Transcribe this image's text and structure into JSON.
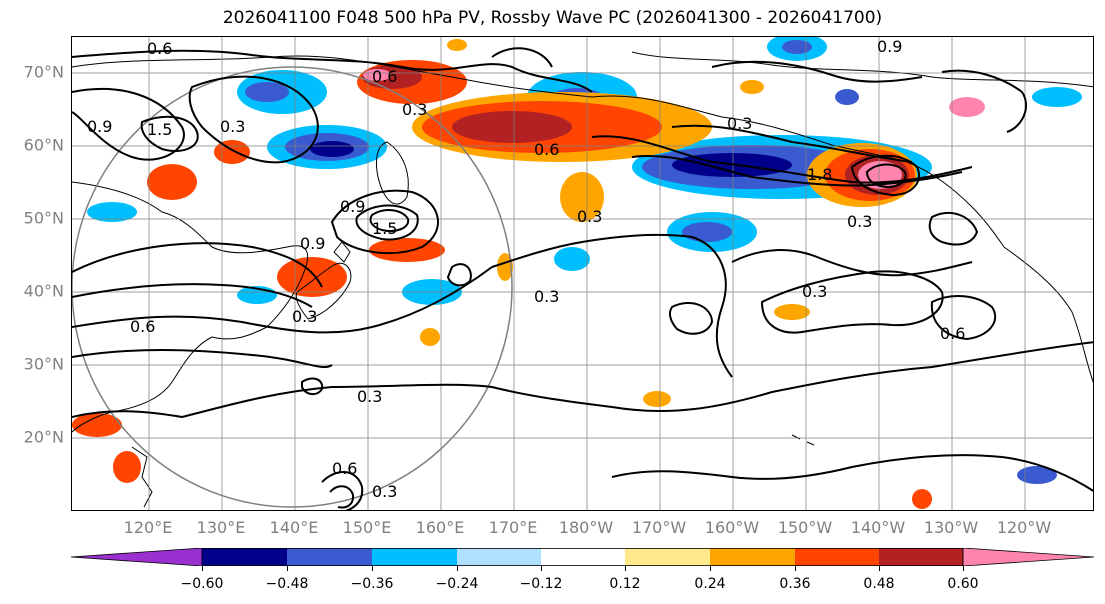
{
  "title": "2026041100 F048 500 hPa PV, Rossby Wave PC (2026041300 - 2026041700)",
  "lat_labels": [
    "70°N",
    "60°N",
    "50°N",
    "40°N",
    "30°N",
    "20°N"
  ],
  "lon_labels": [
    "120°E",
    "130°E",
    "140°E",
    "150°E",
    "160°E",
    "170°E",
    "180°W",
    "170°W",
    "160°W",
    "150°W",
    "140°W",
    "130°W",
    "120°W"
  ],
  "contour_labels": [
    "0.6",
    "0.9",
    "1.5",
    "0.3",
    "0.3",
    "0.6",
    "0.9",
    "0.3",
    "1.8",
    "0.3",
    "0.6",
    "0.9",
    "1.5",
    "0.9",
    "0.3",
    "0.6",
    "0.3",
    "0.3",
    "0.3",
    "0.6",
    "0.3",
    "0.6",
    "0.3"
  ],
  "colorbar": {
    "ticks": [
      "−0.60",
      "−0.48",
      "−0.36",
      "−0.24",
      "−0.12",
      "0.12",
      "0.24",
      "0.36",
      "0.48",
      "0.60"
    ],
    "colors": [
      "#9b30d0",
      "#00008b",
      "#3a5bcf",
      "#00bfff",
      "#b0e0ff",
      "#ffffff",
      "#ffe98a",
      "#ffa500",
      "#ff4500",
      "#b22222",
      "#ff85b0"
    ]
  },
  "palette": {
    "neg_strong": "#3a5bcf",
    "neg_deep": "#00008b",
    "neg_mid": "#00bfff",
    "neg_light": "#b0e0ff",
    "pos_light": "#ffe98a",
    "pos_mid": "#ffa500",
    "pos_strong": "#ff4500",
    "pos_deep": "#b22222",
    "pos_max": "#ff85b0"
  }
}
